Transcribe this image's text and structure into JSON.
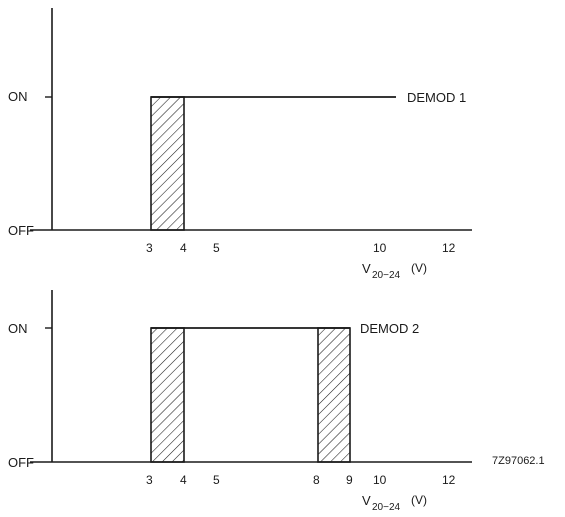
{
  "level_labels": {
    "on": "ON",
    "off": "OFF"
  },
  "x_axis": {
    "base": "V",
    "subscript": "20−24",
    "unit": "(V)",
    "ticks": [
      "3",
      "4",
      "5",
      "10",
      "12"
    ],
    "ticks_lower": [
      "3",
      "4",
      "5",
      "8",
      "9",
      "10",
      "12"
    ]
  },
  "figure_ref": "7Z97062.1",
  "chart_data": [
    {
      "type": "line",
      "series": [
        {
          "name": "DEMOD 1",
          "on_from_v": 3,
          "on_to_v": 10.3
        }
      ],
      "hatched_transition_bands_v": [
        [
          3,
          4
        ]
      ],
      "y_levels": [
        "OFF",
        "ON"
      ]
    },
    {
      "type": "line",
      "series": [
        {
          "name": "DEMOD 2",
          "on_from_v": 3,
          "on_to_v": 9
        }
      ],
      "hatched_transition_bands_v": [
        [
          3,
          4
        ],
        [
          8,
          9
        ]
      ],
      "y_levels": [
        "OFF",
        "ON"
      ]
    }
  ]
}
